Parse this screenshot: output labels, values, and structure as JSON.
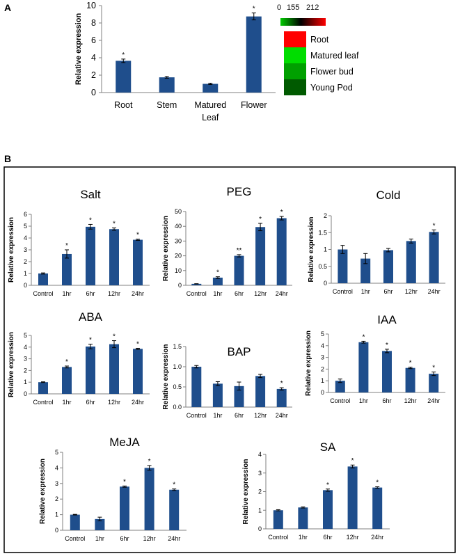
{
  "panel_a_label": "A",
  "panel_b_label": "B",
  "colors": {
    "bar": "#1f4e8c",
    "axis": "#808080"
  },
  "heatmap_legend": {
    "scale_labels": [
      "0",
      "155",
      "212"
    ],
    "entries": [
      {
        "label": "Root",
        "color": "#ff0000"
      },
      {
        "label": "Matured leaf",
        "color": "#00dd00"
      },
      {
        "label": "Flower bud",
        "color": "#00a000"
      },
      {
        "label": "Young Pod",
        "color": "#005a00"
      }
    ]
  },
  "chart_data": [
    {
      "id": "tissue",
      "type": "bar",
      "title": "",
      "ylabel": "Relative expression",
      "categories": [
        [
          "Root"
        ],
        [
          "Stem"
        ],
        [
          "Matured",
          "Leaf"
        ],
        [
          "Flower"
        ]
      ],
      "values": [
        3.65,
        1.75,
        1.0,
        8.75
      ],
      "errors": [
        0.2,
        0.1,
        0.08,
        0.4
      ],
      "stars": [
        "*",
        "",
        "",
        "*"
      ],
      "ylim": [
        0,
        10
      ],
      "yticks": [
        "0",
        "2",
        "4",
        "6",
        "8",
        "10"
      ]
    },
    {
      "id": "salt",
      "type": "bar",
      "title": "Salt",
      "ylabel": "Relative expression",
      "categories": [
        "Control",
        "1hr",
        "6hr",
        "12hr",
        "24hr"
      ],
      "values": [
        1.0,
        2.65,
        4.95,
        4.75,
        3.85
      ],
      "errors": [
        0.05,
        0.35,
        0.2,
        0.1,
        0.05
      ],
      "stars": [
        "",
        "*",
        "*",
        "*",
        "*"
      ],
      "ylim": [
        0,
        6
      ],
      "yticks": [
        "0",
        "1",
        "2",
        "3",
        "4",
        "5",
        "6"
      ]
    },
    {
      "id": "peg",
      "type": "bar",
      "title": "PEG",
      "ylabel": "Relative expression",
      "categories": [
        "Control",
        "1hr",
        "6hr",
        "12hr",
        "24hr"
      ],
      "values": [
        1.0,
        5.2,
        20.0,
        39.5,
        45.5
      ],
      "errors": [
        0.1,
        0.6,
        0.8,
        2.5,
        1.2
      ],
      "stars": [
        "",
        "*",
        "**",
        "*",
        "*"
      ],
      "ylim": [
        0,
        50
      ],
      "yticks": [
        "0",
        "10",
        "20",
        "30",
        "40",
        "50"
      ]
    },
    {
      "id": "cold",
      "type": "bar",
      "title": "Cold",
      "ylabel": "Relative expression",
      "categories": [
        "Control",
        "1hr",
        "6hr",
        "12hr",
        "24hr"
      ],
      "values": [
        1.0,
        0.73,
        0.98,
        1.25,
        1.52
      ],
      "errors": [
        0.12,
        0.15,
        0.05,
        0.06,
        0.06
      ],
      "stars": [
        "",
        "",
        "",
        "",
        "*"
      ],
      "ylim": [
        0,
        2
      ],
      "yticks": [
        "0",
        "0.5",
        "1",
        "1.5",
        "2"
      ]
    },
    {
      "id": "aba",
      "type": "bar",
      "title": "ABA",
      "ylabel": "Relative expression",
      "categories": [
        "Control",
        "1hr",
        "6hr",
        "12hr",
        "24hr"
      ],
      "values": [
        1.0,
        2.3,
        4.05,
        4.25,
        3.85
      ],
      "errors": [
        0.03,
        0.08,
        0.2,
        0.3,
        0.05
      ],
      "stars": [
        "",
        "*",
        "*",
        "*",
        "*"
      ],
      "ylim": [
        0,
        5
      ],
      "yticks": [
        "0",
        "1",
        "2",
        "3",
        "4",
        "5"
      ]
    },
    {
      "id": "bap",
      "type": "bar",
      "title": "BAP",
      "ylabel": "Relative expression",
      "categories": [
        "Control",
        "1hr",
        "6hr",
        "12hr",
        "24hr"
      ],
      "values": [
        1.0,
        0.58,
        0.52,
        0.77,
        0.45
      ],
      "errors": [
        0.03,
        0.05,
        0.1,
        0.04,
        0.03
      ],
      "stars": [
        "",
        "",
        "",
        "",
        "*"
      ],
      "ylim": [
        0,
        1.5
      ],
      "yticks": [
        "0.0",
        "0.5",
        "1.0",
        "1.5"
      ]
    },
    {
      "id": "iaa",
      "type": "bar",
      "title": "IAA",
      "ylabel": "Relative expression",
      "categories": [
        "Control",
        "1hr",
        "6hr",
        "12hr",
        "24hr"
      ],
      "values": [
        1.0,
        4.3,
        3.55,
        2.1,
        1.6
      ],
      "errors": [
        0.15,
        0.08,
        0.15,
        0.06,
        0.15
      ],
      "stars": [
        "",
        "*",
        "*",
        "*",
        "*"
      ],
      "ylim": [
        0,
        5
      ],
      "yticks": [
        "0",
        "1",
        "2",
        "3",
        "4",
        "5"
      ]
    },
    {
      "id": "meja",
      "type": "bar",
      "title": "MeJA",
      "ylabel": "Relative expression",
      "categories": [
        "Control",
        "1hr",
        "6hr",
        "12hr",
        "24hr"
      ],
      "values": [
        1.0,
        0.72,
        2.8,
        4.0,
        2.6
      ],
      "errors": [
        0.02,
        0.12,
        0.04,
        0.15,
        0.05
      ],
      "stars": [
        "",
        "",
        "*",
        "*",
        "*"
      ],
      "ylim": [
        0,
        5
      ],
      "yticks": [
        "0",
        "1",
        "2",
        "3",
        "4",
        "5"
      ]
    },
    {
      "id": "sa",
      "type": "bar",
      "title": "SA",
      "ylabel": "Relative expression",
      "categories": [
        "Control",
        "1hr",
        "6hr",
        "12hr",
        "24hr"
      ],
      "values": [
        1.0,
        1.15,
        2.08,
        3.35,
        2.22
      ],
      "errors": [
        0.03,
        0.03,
        0.06,
        0.08,
        0.04
      ],
      "stars": [
        "",
        "",
        "*",
        "*",
        "*"
      ],
      "ylim": [
        0,
        4
      ],
      "yticks": [
        "0",
        "1",
        "2",
        "3",
        "4"
      ]
    }
  ]
}
